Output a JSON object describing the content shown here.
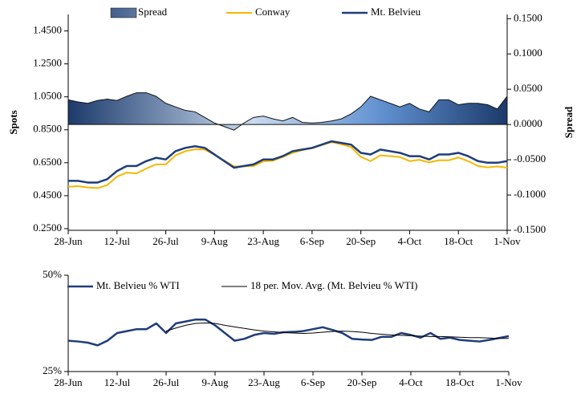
{
  "chart_data": [
    {
      "type": "line",
      "y_label": "Spots",
      "y2_label": "Spread",
      "categories": [
        "28-Jun",
        null,
        null,
        null,
        null,
        "12-Jul",
        null,
        null,
        null,
        null,
        "26-Jul",
        null,
        null,
        null,
        null,
        "9-Aug",
        null,
        null,
        null,
        null,
        "23-Aug",
        null,
        null,
        null,
        null,
        "6-Sep",
        null,
        null,
        null,
        null,
        "20-Sep",
        null,
        null,
        null,
        null,
        "4-Oct",
        null,
        null,
        null,
        null,
        "18-Oct",
        null,
        null,
        null,
        null,
        "1-Nov"
      ],
      "ylim": [
        0.24,
        1.55
      ],
      "yticks": [
        {
          "value": 0.25,
          "label": "0.2500"
        },
        {
          "value": 0.45,
          "label": "0.4500"
        },
        {
          "value": 0.65,
          "label": "0.6500"
        },
        {
          "value": 0.85,
          "label": "0.8500"
        },
        {
          "value": 1.05,
          "label": "1.0500"
        },
        {
          "value": 1.25,
          "label": "1.2500"
        },
        {
          "value": 1.45,
          "label": "1.4500"
        }
      ],
      "y2lim": [
        -0.15,
        0.156
      ],
      "y2ticks": [
        {
          "value": -0.15,
          "label": "-0.1500"
        },
        {
          "value": -0.1,
          "label": "-0.1000"
        },
        {
          "value": -0.05,
          "label": "-0.0500"
        },
        {
          "value": 0,
          "label": "0.0000"
        },
        {
          "value": 0.05,
          "label": "0.0500"
        },
        {
          "value": 0.1,
          "label": "0.1000"
        },
        {
          "value": 0.15,
          "label": "0.1500"
        }
      ],
      "series": [
        {
          "name": "Spread",
          "color": "#1c3a6b",
          "axis": "y2",
          "style": "area",
          "values": [
            0.035,
            0.032,
            0.03,
            0.034,
            0.036,
            0.034,
            0.04,
            0.045,
            0.045,
            0.04,
            0.03,
            0.025,
            0.02,
            0.018,
            0.01,
            0.002,
            -0.003,
            -0.008,
            0.002,
            0.01,
            0.012,
            0.008,
            0.005,
            0.01,
            0.003,
            0.002,
            0.003,
            0.005,
            0.008,
            0.015,
            0.025,
            0.04,
            0.035,
            0.03,
            0.025,
            0.03,
            0.022,
            0.018,
            0.035,
            0.035,
            0.028,
            0.03,
            0.03,
            0.028,
            0.022,
            0.04
          ]
        },
        {
          "name": "Conway",
          "color": "#f5b800",
          "style": "line",
          "values": [
            0.505,
            0.508,
            0.5,
            0.496,
            0.514,
            0.566,
            0.59,
            0.585,
            0.615,
            0.64,
            0.64,
            0.695,
            0.72,
            0.732,
            0.73,
            0.698,
            0.663,
            0.628,
            0.628,
            0.63,
            0.658,
            0.662,
            0.685,
            0.71,
            0.727,
            0.738,
            0.757,
            0.775,
            0.762,
            0.745,
            0.685,
            0.66,
            0.695,
            0.69,
            0.685,
            0.66,
            0.668,
            0.652,
            0.665,
            0.665,
            0.682,
            0.66,
            0.63,
            0.622,
            0.628,
            0.62
          ]
        },
        {
          "name": "Mt. Belvieu",
          "color": "#1f3d7a",
          "style": "line",
          "values": [
            0.54,
            0.54,
            0.53,
            0.53,
            0.55,
            0.6,
            0.63,
            0.63,
            0.66,
            0.68,
            0.67,
            0.72,
            0.74,
            0.75,
            0.74,
            0.7,
            0.66,
            0.62,
            0.63,
            0.64,
            0.67,
            0.67,
            0.69,
            0.72,
            0.73,
            0.74,
            0.76,
            0.78,
            0.77,
            0.76,
            0.71,
            0.7,
            0.73,
            0.72,
            0.71,
            0.69,
            0.69,
            0.67,
            0.7,
            0.7,
            0.71,
            0.69,
            0.66,
            0.65,
            0.65,
            0.66
          ]
        }
      ]
    },
    {
      "type": "line",
      "categories": [
        "28-Jun",
        null,
        null,
        null,
        null,
        "12-Jul",
        null,
        null,
        null,
        null,
        "26-Jul",
        null,
        null,
        null,
        null,
        "9-Aug",
        null,
        null,
        null,
        null,
        "23-Aug",
        null,
        null,
        null,
        null,
        "6-Sep",
        null,
        null,
        null,
        null,
        "20-Sep",
        null,
        null,
        null,
        null,
        "4-Oct",
        null,
        null,
        null,
        null,
        "18-Oct",
        null,
        null,
        null,
        null,
        "1-Nov"
      ],
      "ylim": [
        25,
        50
      ],
      "yticks": [
        {
          "value": 25,
          "label": "25%"
        },
        {
          "value": 50,
          "label": "50%"
        }
      ],
      "series": [
        {
          "name": "Mt. Belvieu % WTI",
          "color": "#1f3d7a",
          "style": "line",
          "values": [
            33,
            32.8,
            32.5,
            31.8,
            33,
            35,
            35.5,
            36,
            36,
            37.5,
            35,
            37.5,
            38,
            38.5,
            38.5,
            37,
            35,
            33,
            33.5,
            34.5,
            35,
            34.8,
            35.2,
            35.3,
            35.5,
            36,
            36.5,
            35.8,
            35,
            33.5,
            33.3,
            33.2,
            34,
            34,
            35,
            34.5,
            33.8,
            35,
            33.5,
            33.8,
            33.2,
            33,
            32.8,
            33.2,
            33.7,
            34.2
          ]
        },
        {
          "name": "18 per. Mov. Avg. (Mt. Belvieu % WTI)",
          "color": "#000000",
          "style": "line",
          "values": [
            null,
            null,
            null,
            null,
            null,
            null,
            null,
            null,
            null,
            null,
            35.5,
            36.3,
            37,
            37.5,
            37.6,
            37.5,
            37,
            36.6,
            36.2,
            35.8,
            35.5,
            35.3,
            35.1,
            35,
            34.9,
            35,
            35.2,
            35.4,
            35.5,
            35.4,
            35.2,
            34.9,
            34.7,
            34.5,
            34.4,
            34.3,
            34.2,
            34.1,
            34.1,
            34.0,
            33.9,
            33.8,
            33.8,
            33.7,
            33.6,
            33.6
          ]
        }
      ]
    }
  ]
}
